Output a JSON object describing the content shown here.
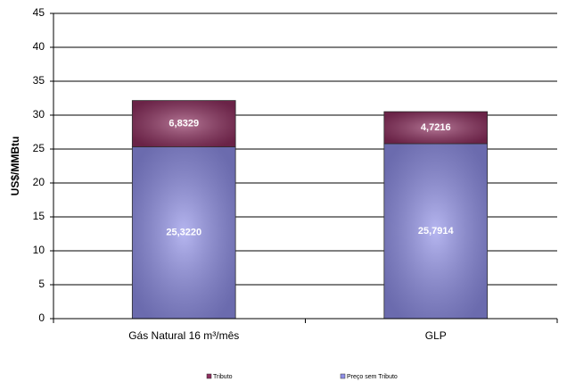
{
  "chart_data": {
    "type": "stacked_bar",
    "y_label": "US$/MMBtu",
    "categories": [
      "Gás Natural 16 m³/mês",
      "GLP"
    ],
    "series": [
      {
        "name": "Preço sem Tributo",
        "color": "#8f8fe8",
        "values": [
          25.322,
          25.7914
        ],
        "value_labels": [
          "25,3220",
          "25,7914"
        ]
      },
      {
        "name": "Tributo",
        "color": "#8e2f5f",
        "values": [
          6.8329,
          4.7216
        ],
        "value_labels": [
          "6,8329",
          "4,7216"
        ]
      }
    ],
    "ylim": [
      0,
      45
    ],
    "yticks": [
      0,
      5,
      10,
      15,
      20,
      25,
      30,
      35,
      40,
      45
    ],
    "grid": true
  }
}
